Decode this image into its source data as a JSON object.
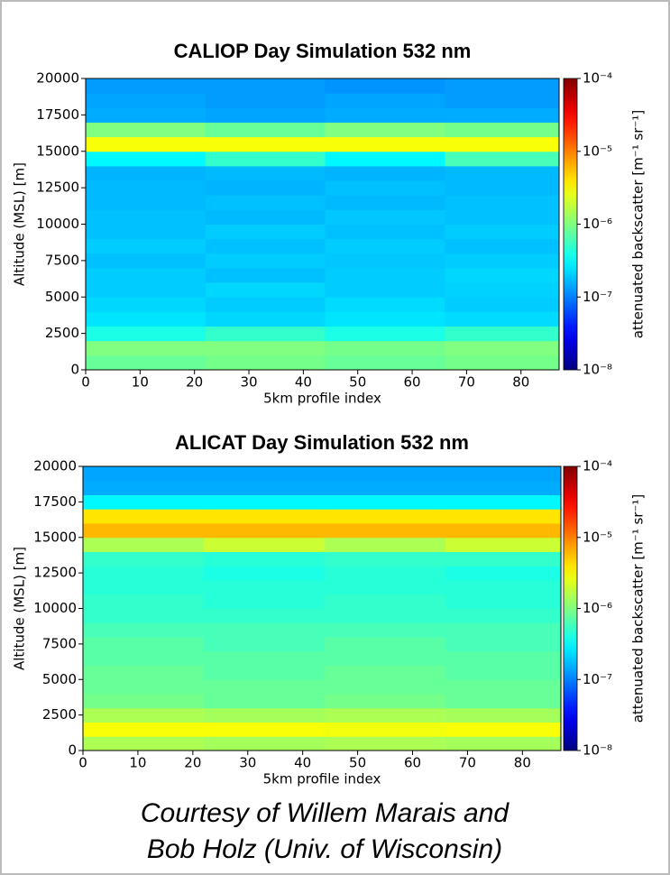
{
  "chart_data": [
    {
      "type": "heatmap",
      "title": "CALIOP Day Simulation 532 nm",
      "xlabel": "5km profile index",
      "ylabel": "Altitude (MSL) [m]",
      "colorbar_label": "attenuated backscatter [m⁻¹ sr⁻¹]",
      "colormap": "jet",
      "color_log": true,
      "x_edges": [
        0,
        22,
        44,
        66,
        87
      ],
      "y_edges": [
        0,
        1000,
        2000,
        3000,
        4000,
        5000,
        6000,
        7000,
        8000,
        9000,
        10000,
        11000,
        12000,
        13000,
        14000,
        15000,
        16000,
        17000,
        18000,
        19000,
        20000
      ],
      "z": [
        [
          8e-07,
          9e-07,
          8e-07,
          9e-07
        ],
        [
          1e-06,
          1e-06,
          9e-07,
          1e-06
        ],
        [
          4e-07,
          5e-07,
          4e-07,
          5e-07
        ],
        [
          2.5e-07,
          2.2e-07,
          2.5e-07,
          2.3e-07
        ],
        [
          2.2e-07,
          2e-07,
          2.3e-07,
          2e-07
        ],
        [
          2e-07,
          2.2e-07,
          2e-07,
          2.1e-07
        ],
        [
          2e-07,
          1.8e-07,
          2e-07,
          2.2e-07
        ],
        [
          1.8e-07,
          2e-07,
          1.9e-07,
          2e-07
        ],
        [
          2e-07,
          1.8e-07,
          2e-07,
          1.8e-07
        ],
        [
          1.8e-07,
          2e-07,
          1.8e-07,
          2e-07
        ],
        [
          1.8e-07,
          1.7e-07,
          1.9e-07,
          1.8e-07
        ],
        [
          1.7e-07,
          1.8e-07,
          1.7e-07,
          1.8e-07
        ],
        [
          1.7e-07,
          1.6e-07,
          1.8e-07,
          1.7e-07
        ],
        [
          1.6e-07,
          1.7e-07,
          1.6e-07,
          1.7e-07
        ],
        [
          3e-07,
          5e-07,
          3e-07,
          6e-07
        ],
        [
          3e-06,
          3e-06,
          3e-06,
          3e-06
        ],
        [
          1e-06,
          8e-07,
          1e-06,
          9e-07
        ],
        [
          1.5e-07,
          1.4e-07,
          1.5e-07,
          1.5e-07
        ],
        [
          1.4e-07,
          1.3e-07,
          1.4e-07,
          1.3e-07
        ],
        [
          1.3e-07,
          1.3e-07,
          1.2e-07,
          1.3e-07
        ]
      ],
      "xlim": [
        0,
        87
      ],
      "xticks": [
        0,
        10,
        20,
        30,
        40,
        50,
        60,
        70,
        80
      ],
      "ylim": [
        0,
        20000
      ],
      "yticks": [
        0,
        2500,
        5000,
        7500,
        10000,
        12500,
        15000,
        17500,
        20000
      ],
      "clim": [
        1e-08,
        0.0001
      ],
      "cticks": [
        {
          "value": 1e-08,
          "label": "10⁻⁸"
        },
        {
          "value": 1e-07,
          "label": "10⁻⁷"
        },
        {
          "value": 1e-06,
          "label": "10⁻⁶"
        },
        {
          "value": 1e-05,
          "label": "10⁻⁵"
        },
        {
          "value": 0.0001,
          "label": "10⁻⁴"
        }
      ]
    },
    {
      "type": "heatmap",
      "title": "ALICAT Day Simulation 532 nm",
      "xlabel": "5km profile index",
      "ylabel": "Altitude (MSL) [m]",
      "colorbar_label": "attenuated backscatter [m⁻¹ sr⁻¹]",
      "colormap": "jet",
      "color_log": true,
      "x_edges": [
        0,
        22,
        44,
        66,
        87
      ],
      "y_edges": [
        0,
        1000,
        2000,
        3000,
        4000,
        5000,
        6000,
        7000,
        8000,
        9000,
        10000,
        11000,
        12000,
        13000,
        14000,
        15000,
        16000,
        17000,
        18000,
        19000,
        20000
      ],
      "z": [
        [
          1.5e-06,
          1.4e-06,
          1.5e-06,
          1.4e-06
        ],
        [
          3e-06,
          3e-06,
          2.8e-06,
          3e-06
        ],
        [
          1.5e-06,
          1.4e-06,
          1.5e-06,
          1.4e-06
        ],
        [
          9e-07,
          8e-07,
          9e-07,
          8e-07
        ],
        [
          8e-07,
          8e-07,
          8e-07,
          8e-07
        ],
        [
          8e-07,
          7e-07,
          8e-07,
          7e-07
        ],
        [
          7e-07,
          7e-07,
          7e-07,
          7e-07
        ],
        [
          7e-07,
          6e-07,
          7e-07,
          6e-07
        ],
        [
          6e-07,
          6e-07,
          6e-07,
          6e-07
        ],
        [
          5e-07,
          5e-07,
          5e-07,
          5e-07
        ],
        [
          5e-07,
          4.5e-07,
          5e-07,
          4.5e-07
        ],
        [
          4.5e-07,
          4.5e-07,
          4.5e-07,
          4.5e-07
        ],
        [
          4.5e-07,
          4e-07,
          4.5e-07,
          4e-07
        ],
        [
          5e-07,
          4.5e-07,
          5e-07,
          5e-07
        ],
        [
          1.5e-06,
          2e-06,
          1.5e-06,
          2e-06
        ],
        [
          6e-06,
          6e-06,
          6e-06,
          6e-06
        ],
        [
          4e-06,
          4e-06,
          4e-06,
          4e-06
        ],
        [
          3e-07,
          3e-07,
          3e-07,
          3e-07
        ],
        [
          1.5e-07,
          1.5e-07,
          1.5e-07,
          1.5e-07
        ],
        [
          1.4e-07,
          1.4e-07,
          1.4e-07,
          1.4e-07
        ]
      ],
      "xlim": [
        0,
        87
      ],
      "xticks": [
        0,
        10,
        20,
        30,
        40,
        50,
        60,
        70,
        80
      ],
      "ylim": [
        0,
        20000
      ],
      "yticks": [
        0,
        2500,
        5000,
        7500,
        10000,
        12500,
        15000,
        17500,
        20000
      ],
      "clim": [
        1e-08,
        0.0001
      ],
      "cticks": [
        {
          "value": 1e-08,
          "label": "10⁻⁸"
        },
        {
          "value": 1e-07,
          "label": "10⁻⁷"
        },
        {
          "value": 1e-06,
          "label": "10⁻⁶"
        },
        {
          "value": 1e-05,
          "label": "10⁻⁵"
        },
        {
          "value": 0.0001,
          "label": "10⁻⁴"
        }
      ]
    }
  ],
  "caption": [
    "Courtesy of Willem Marais and",
    "Bob Holz (Univ. of Wisconsin)"
  ]
}
